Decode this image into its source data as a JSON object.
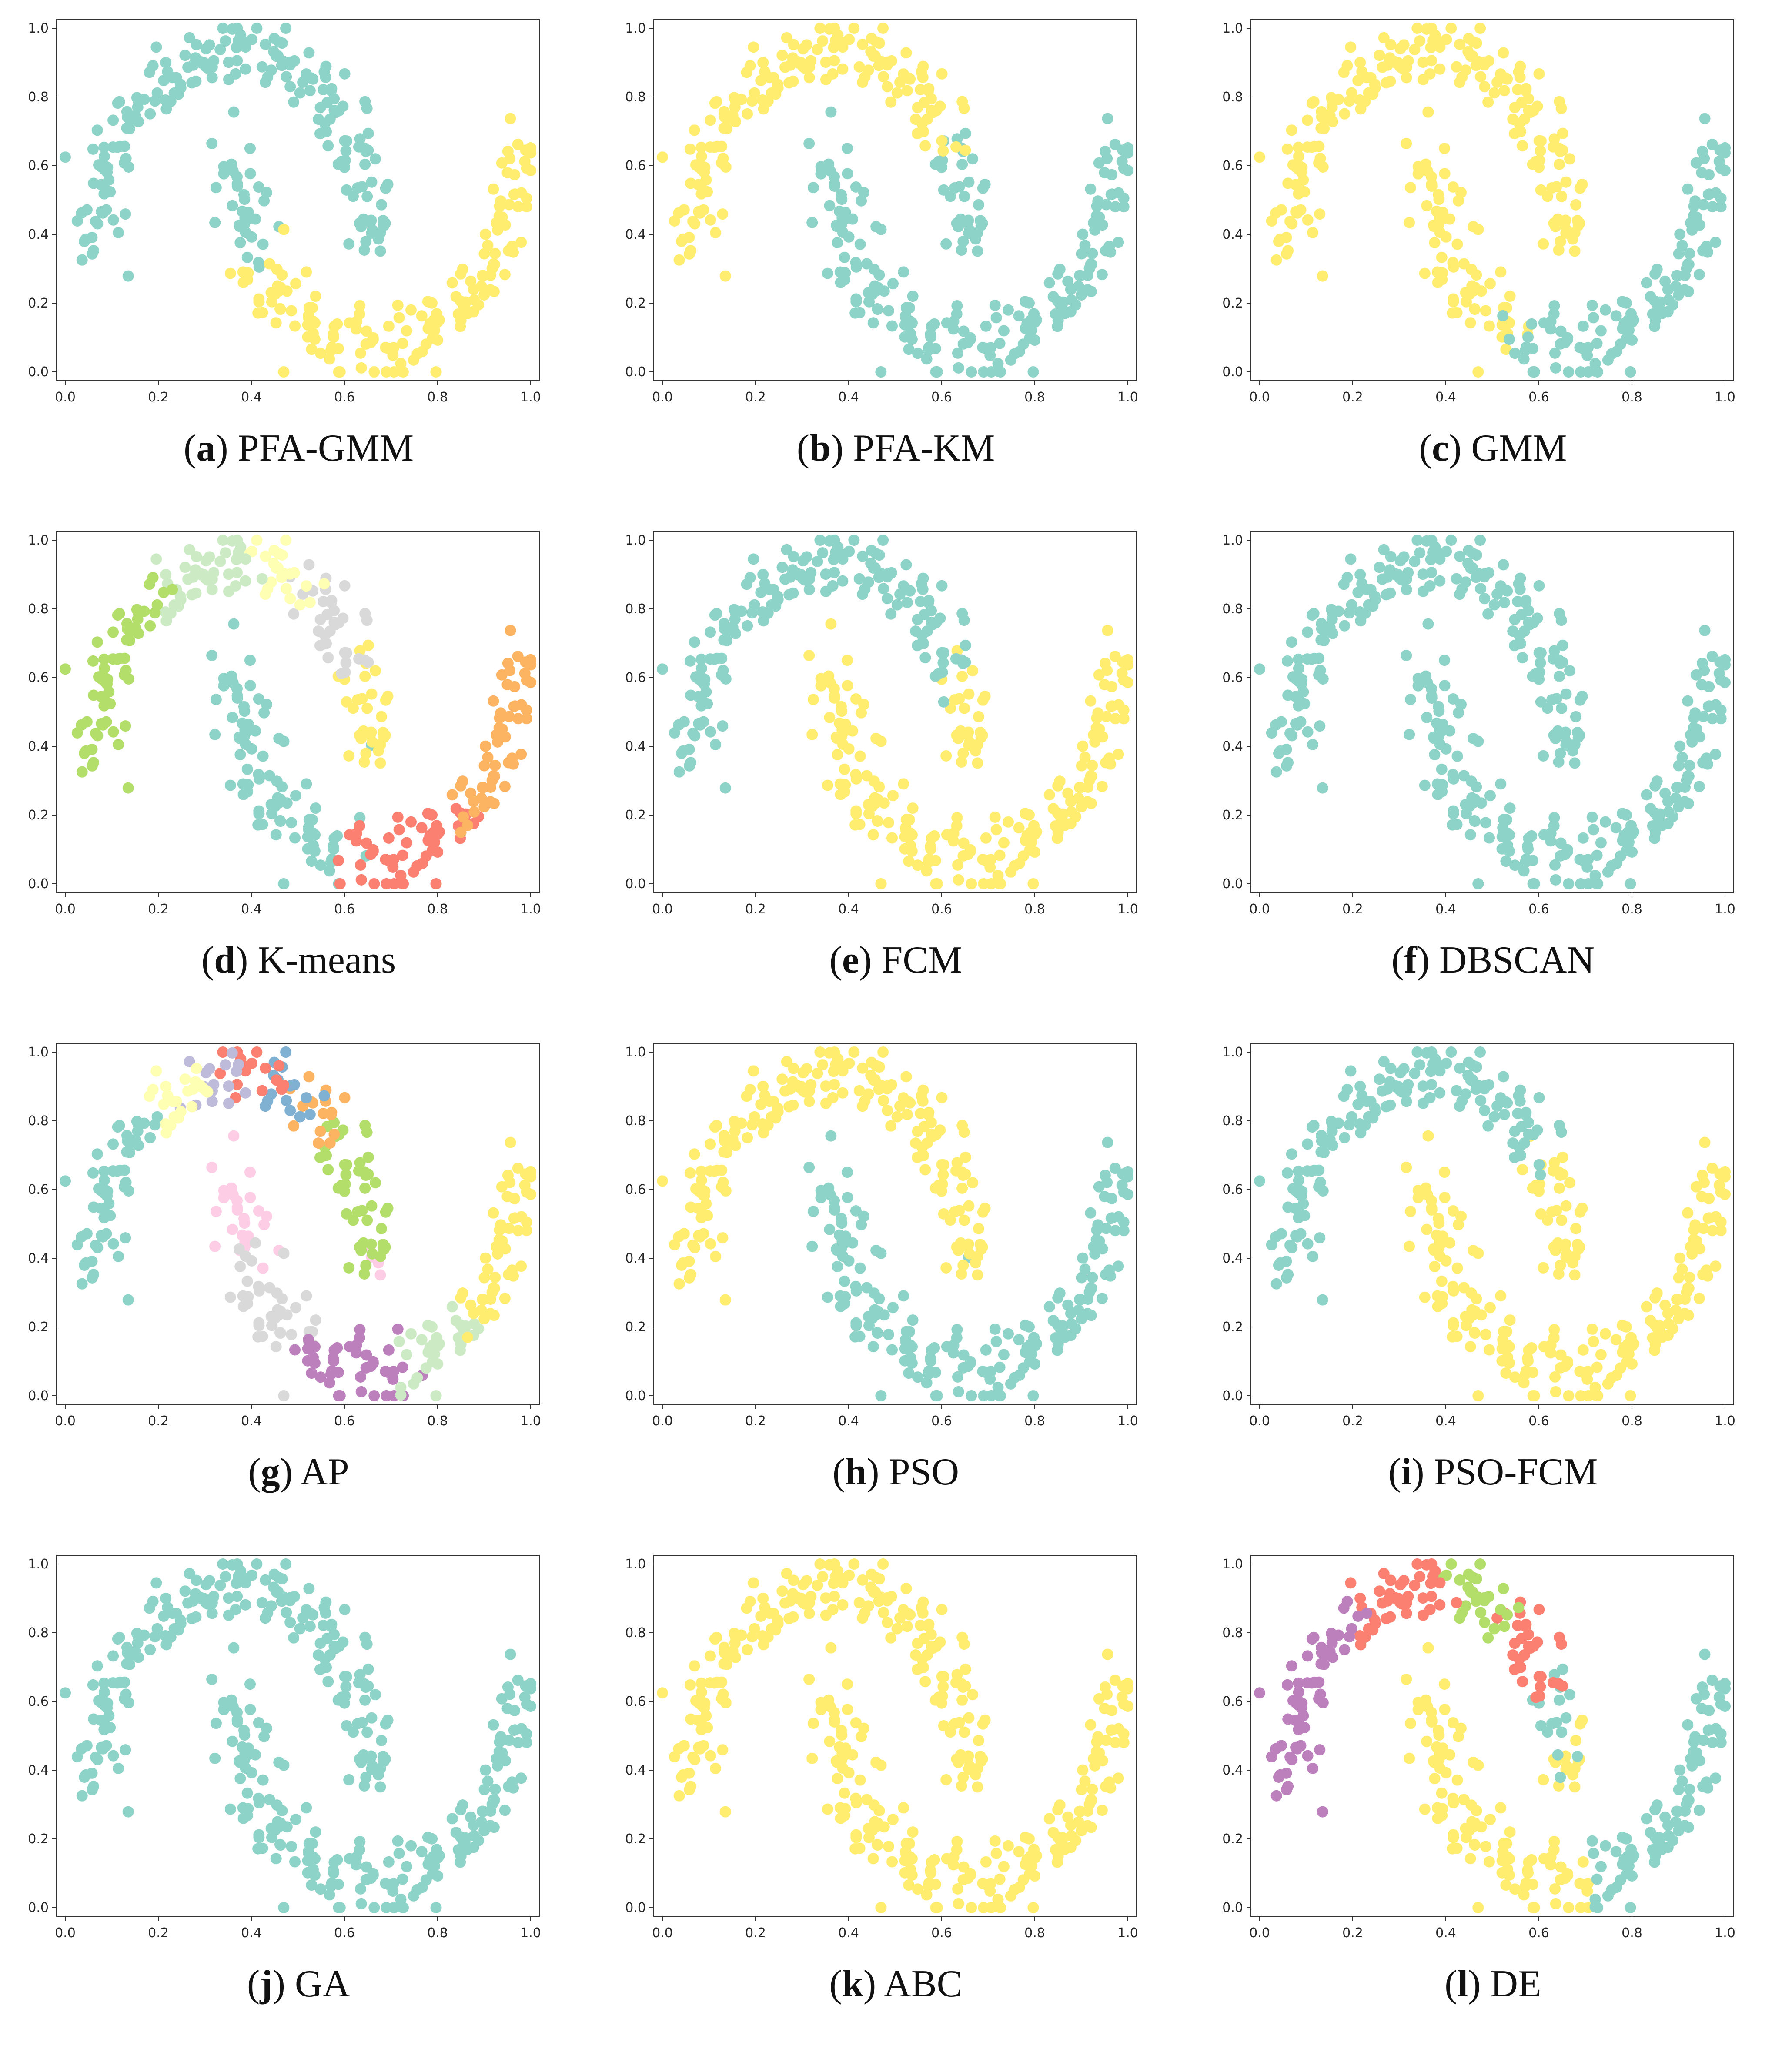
{
  "colors": {
    "teal": "#8dd3c7",
    "yellow": "#ffed6f",
    "lightyellow": "#ffffb3",
    "lavender": "#bebada",
    "salmon": "#fb8072",
    "blue": "#80b1d3",
    "orange": "#fdb462",
    "green": "#b3de69",
    "pink": "#fccde5",
    "gray": "#d9d9d9",
    "purple": "#bc80bd",
    "mint": "#ccebc5"
  },
  "chart_data": [
    {
      "id": "a",
      "type": "scatter",
      "letter": "a",
      "title": "PFA-GMM",
      "xlim": [
        0,
        1
      ],
      "ylim": [
        0,
        1
      ],
      "x_ticks": [
        "0.0",
        "0.2",
        "0.4",
        "0.6",
        "0.8",
        "1.0"
      ],
      "y_ticks": [
        "0.0",
        "0.2",
        "0.4",
        "0.6",
        "0.8",
        "1.0"
      ],
      "clusters": [
        {
          "color": "teal",
          "from": 0.0,
          "to": 0.59
        },
        {
          "color": "yellow",
          "from": 0.59,
          "to": 1.0
        }
      ]
    },
    {
      "id": "b",
      "type": "scatter",
      "letter": "b",
      "title": "PFA-KM",
      "xlim": [
        0,
        1
      ],
      "ylim": [
        0,
        1
      ],
      "x_ticks": [
        "0.0",
        "0.2",
        "0.4",
        "0.6",
        "0.8",
        "1.0"
      ],
      "y_ticks": [
        "0.0",
        "0.2",
        "0.4",
        "0.6",
        "0.8",
        "1.0"
      ],
      "clusters": [
        {
          "color": "yellow",
          "from": 0.0,
          "to": 0.41
        },
        {
          "color": "teal",
          "from": 0.41,
          "to": 1.0
        }
      ]
    },
    {
      "id": "c",
      "type": "scatter",
      "letter": "c",
      "title": "GMM",
      "xlim": [
        0,
        1
      ],
      "ylim": [
        0,
        1
      ],
      "x_ticks": [
        "0.0",
        "0.2",
        "0.4",
        "0.6",
        "0.8",
        "1.0"
      ],
      "y_ticks": [
        "0.0",
        "0.2",
        "0.4",
        "0.6",
        "0.8",
        "1.0"
      ],
      "clusters": [
        {
          "color": "yellow",
          "from": 0.0,
          "to": 0.69
        },
        {
          "color": "teal",
          "from": 0.69,
          "to": 1.0
        }
      ]
    },
    {
      "id": "d",
      "type": "scatter",
      "letter": "d",
      "title": "K-means",
      "xlim": [
        0,
        1
      ],
      "ylim": [
        0,
        1
      ],
      "x_ticks": [
        "0.0",
        "0.2",
        "0.4",
        "0.6",
        "0.8",
        "1.0"
      ],
      "y_ticks": [
        "0.0",
        "0.2",
        "0.4",
        "0.6",
        "0.8",
        "1.0"
      ],
      "clusters": [
        {
          "color": "green",
          "from": 0.0,
          "to": 0.16
        },
        {
          "color": "mint",
          "from": 0.16,
          "to": 0.27
        },
        {
          "color": "lightyellow",
          "from": 0.27,
          "to": 0.33
        },
        {
          "color": "gray",
          "from": 0.33,
          "to": 0.42
        },
        {
          "color": "yellow",
          "from": 0.42,
          "to": 0.5
        },
        {
          "color": "teal",
          "from": 0.5,
          "to": 0.72
        },
        {
          "color": "salmon",
          "from": 0.72,
          "to": 0.86
        },
        {
          "color": "orange",
          "from": 0.86,
          "to": 1.0
        }
      ]
    },
    {
      "id": "e",
      "type": "scatter",
      "letter": "e",
      "title": "FCM",
      "xlim": [
        0,
        1
      ],
      "ylim": [
        0,
        1
      ],
      "x_ticks": [
        "0.0",
        "0.2",
        "0.4",
        "0.6",
        "0.8",
        "1.0"
      ],
      "y_ticks": [
        "0.0",
        "0.2",
        "0.4",
        "0.6",
        "0.8",
        "1.0"
      ],
      "clusters": [
        {
          "color": "teal",
          "from": 0.0,
          "to": 0.43
        },
        {
          "color": "yellow",
          "from": 0.43,
          "to": 1.0
        }
      ]
    },
    {
      "id": "f",
      "type": "scatter",
      "letter": "f",
      "title": "DBSCAN",
      "xlim": [
        0,
        1
      ],
      "ylim": [
        0,
        1
      ],
      "x_ticks": [
        "0.0",
        "0.2",
        "0.4",
        "0.6",
        "0.8",
        "1.0"
      ],
      "y_ticks": [
        "0.0",
        "0.2",
        "0.4",
        "0.6",
        "0.8",
        "1.0"
      ],
      "clusters": [
        {
          "color": "teal",
          "from": 0.0,
          "to": 1.0
        }
      ]
    },
    {
      "id": "g",
      "type": "scatter",
      "letter": "g",
      "title": "AP",
      "xlim": [
        0,
        1
      ],
      "ylim": [
        0,
        1
      ],
      "x_ticks": [
        "0.0",
        "0.2",
        "0.4",
        "0.6",
        "0.8",
        "1.0"
      ],
      "y_ticks": [
        "0.0",
        "0.2",
        "0.4",
        "0.6",
        "0.8",
        "1.0"
      ],
      "clusters": [
        {
          "color": "teal",
          "from": 0.0,
          "to": 0.15
        },
        {
          "color": "lightyellow",
          "from": 0.15,
          "to": 0.21
        },
        {
          "color": "lavender",
          "from": 0.21,
          "to": 0.25
        },
        {
          "color": "salmon",
          "from": 0.25,
          "to": 0.29
        },
        {
          "color": "blue",
          "from": 0.29,
          "to": 0.33
        },
        {
          "color": "orange",
          "from": 0.33,
          "to": 0.37
        },
        {
          "color": "green",
          "from": 0.37,
          "to": 0.49
        },
        {
          "color": "pink",
          "from": 0.49,
          "to": 0.57
        },
        {
          "color": "gray",
          "from": 0.57,
          "to": 0.67
        },
        {
          "color": "purple",
          "from": 0.67,
          "to": 0.78
        },
        {
          "color": "mint",
          "from": 0.78,
          "to": 0.87
        },
        {
          "color": "yellow",
          "from": 0.87,
          "to": 1.0
        }
      ]
    },
    {
      "id": "h",
      "type": "scatter",
      "letter": "h",
      "title": "PSO",
      "xlim": [
        0,
        1
      ],
      "ylim": [
        0,
        1
      ],
      "x_ticks": [
        "0.0",
        "0.2",
        "0.4",
        "0.6",
        "0.8",
        "1.0"
      ],
      "y_ticks": [
        "0.0",
        "0.2",
        "0.4",
        "0.6",
        "0.8",
        "1.0"
      ],
      "clusters": [
        {
          "color": "yellow",
          "from": 0.0,
          "to": 0.5
        },
        {
          "color": "teal",
          "from": 0.5,
          "to": 1.0
        }
      ]
    },
    {
      "id": "i",
      "type": "scatter",
      "letter": "i",
      "title": "PSO-FCM",
      "xlim": [
        0,
        1
      ],
      "ylim": [
        0,
        1
      ],
      "x_ticks": [
        "0.0",
        "0.2",
        "0.4",
        "0.6",
        "0.8",
        "1.0"
      ],
      "y_ticks": [
        "0.0",
        "0.2",
        "0.4",
        "0.6",
        "0.8",
        "1.0"
      ],
      "clusters": [
        {
          "color": "teal",
          "from": 0.0,
          "to": 0.4
        },
        {
          "color": "yellow",
          "from": 0.4,
          "to": 1.0
        }
      ]
    },
    {
      "id": "j",
      "type": "scatter",
      "letter": "j",
      "title": "GA",
      "xlim": [
        0,
        1
      ],
      "ylim": [
        0,
        1
      ],
      "x_ticks": [
        "0.0",
        "0.2",
        "0.4",
        "0.6",
        "0.8",
        "1.0"
      ],
      "y_ticks": [
        "0.0",
        "0.2",
        "0.4",
        "0.6",
        "0.8",
        "1.0"
      ],
      "clusters": [
        {
          "color": "teal",
          "from": 0.0,
          "to": 1.0
        }
      ]
    },
    {
      "id": "k",
      "type": "scatter",
      "letter": "k",
      "title": "ABC",
      "xlim": [
        0,
        1
      ],
      "ylim": [
        0,
        1
      ],
      "x_ticks": [
        "0.0",
        "0.2",
        "0.4",
        "0.6",
        "0.8",
        "1.0"
      ],
      "y_ticks": [
        "0.0",
        "0.2",
        "0.4",
        "0.6",
        "0.8",
        "1.0"
      ],
      "clusters": [
        {
          "color": "yellow",
          "from": 0.0,
          "to": 1.0
        }
      ]
    },
    {
      "id": "l",
      "type": "scatter",
      "letter": "l",
      "title": "DE",
      "xlim": [
        0,
        1
      ],
      "ylim": [
        0,
        1
      ],
      "x_ticks": [
        "0.0",
        "0.2",
        "0.4",
        "0.6",
        "0.8",
        "1.0"
      ],
      "y_ticks": [
        "0.0",
        "0.2",
        "0.4",
        "0.6",
        "0.8",
        "1.0"
      ],
      "clusters": [
        {
          "color": "purple",
          "from": 0.0,
          "to": 0.16
        },
        {
          "color": "salmon",
          "from": 0.16,
          "to": 0.27
        },
        {
          "color": "green",
          "from": 0.27,
          "to": 0.34
        },
        {
          "color": "salmon",
          "from": 0.34,
          "to": 0.42
        },
        {
          "color": "teal",
          "from": 0.42,
          "to": 0.46
        },
        {
          "color": "yellow",
          "from": 0.46,
          "to": 0.77
        },
        {
          "color": "teal",
          "from": 0.77,
          "to": 1.0
        }
      ]
    }
  ]
}
